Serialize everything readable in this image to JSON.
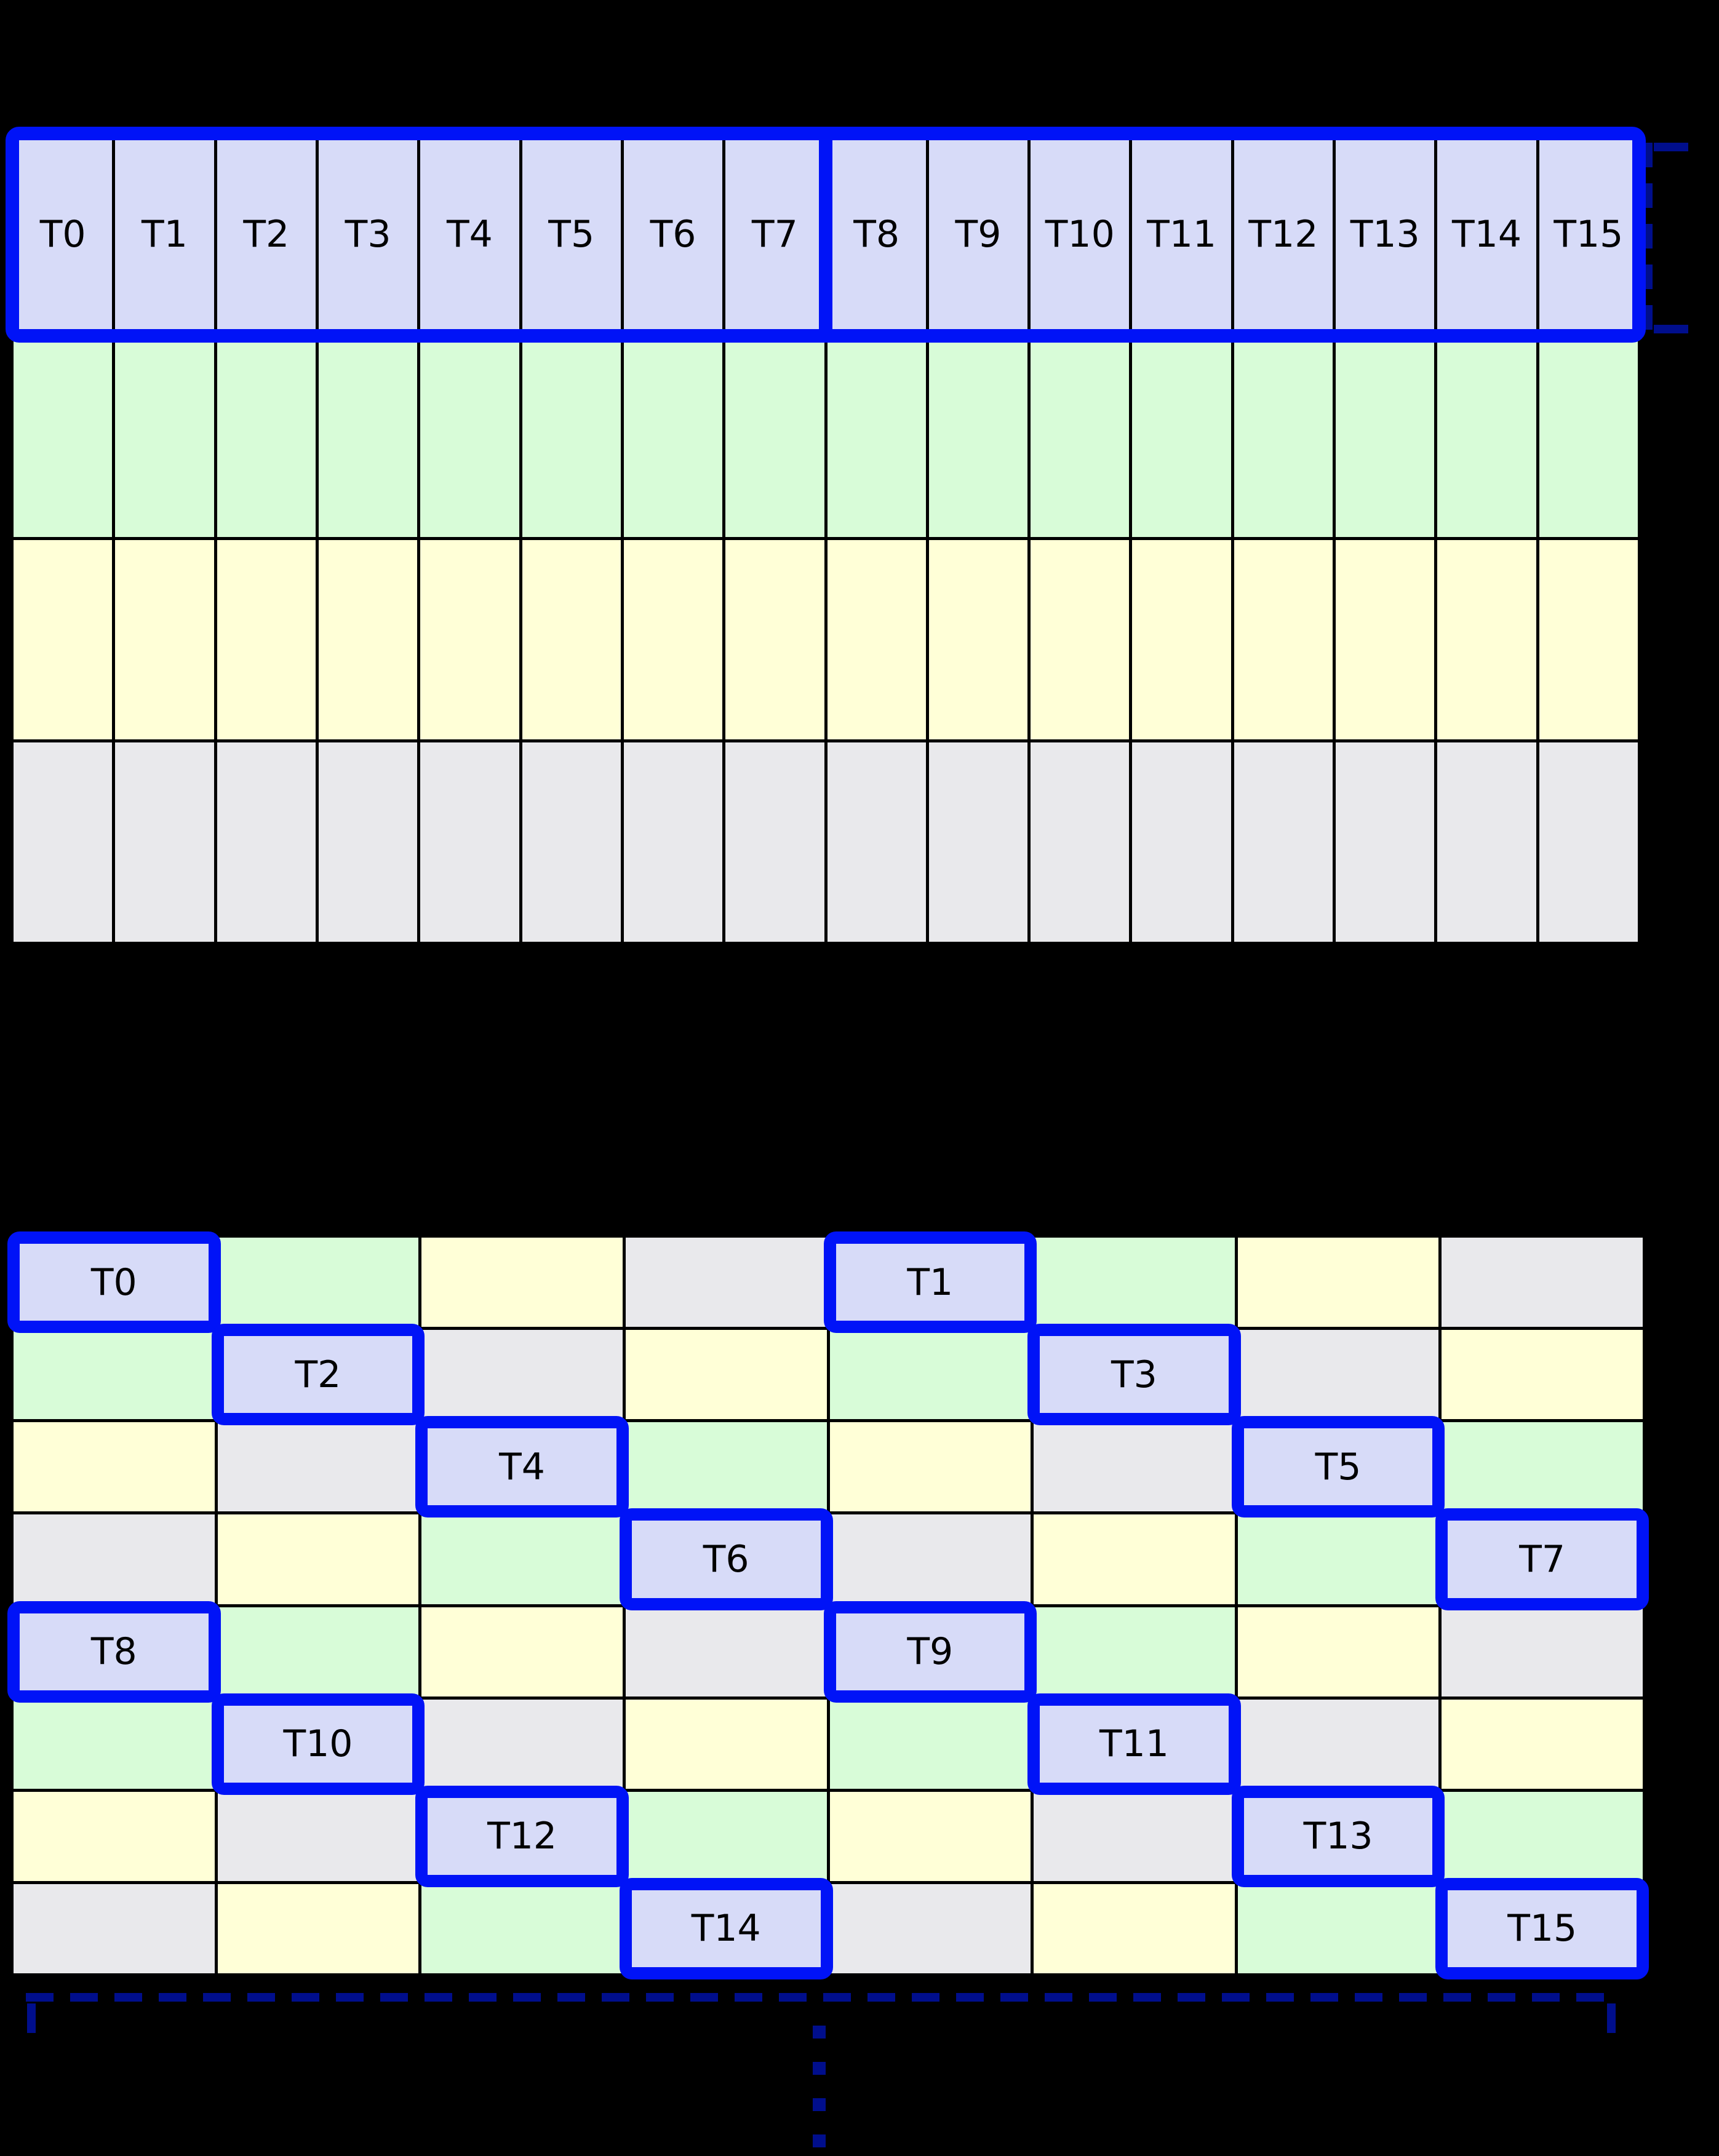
{
  "figure": {
    "background": "#000000"
  },
  "palette": {
    "blue": "#d7dbf8",
    "green": "#d8fcd8",
    "yellow": "#ffffd7",
    "gray": "#e9e9ec"
  },
  "accents": {
    "highlight": "#0013f7",
    "bracket_navy": "#000e8c",
    "grid_line": "#000000",
    "label_text": "#000000"
  },
  "top_grid": {
    "columns": 16,
    "rows": 4,
    "row_colors": [
      "blue",
      "green",
      "yellow",
      "gray"
    ],
    "thread_labels": [
      "T0",
      "T1",
      "T2",
      "T3",
      "T4",
      "T5",
      "T6",
      "T7",
      "T8",
      "T9",
      "T10",
      "T11",
      "T12",
      "T13",
      "T14",
      "T15"
    ],
    "highlighted_row": 0,
    "divider_after_column": 8
  },
  "bottom_grid": {
    "columns": 8,
    "rows": 8,
    "color_matrix": [
      [
        "blue",
        "green",
        "yellow",
        "gray",
        "blue",
        "green",
        "yellow",
        "gray"
      ],
      [
        "green",
        "blue",
        "gray",
        "yellow",
        "green",
        "blue",
        "gray",
        "yellow"
      ],
      [
        "yellow",
        "gray",
        "blue",
        "green",
        "yellow",
        "gray",
        "blue",
        "green"
      ],
      [
        "gray",
        "yellow",
        "green",
        "blue",
        "gray",
        "yellow",
        "green",
        "blue"
      ],
      [
        "blue",
        "green",
        "yellow",
        "gray",
        "blue",
        "green",
        "yellow",
        "gray"
      ],
      [
        "green",
        "blue",
        "gray",
        "yellow",
        "green",
        "blue",
        "gray",
        "yellow"
      ],
      [
        "yellow",
        "gray",
        "blue",
        "green",
        "yellow",
        "gray",
        "blue",
        "green"
      ],
      [
        "gray",
        "yellow",
        "green",
        "blue",
        "gray",
        "yellow",
        "green",
        "blue"
      ]
    ],
    "label_matrix": [
      [
        "T0",
        "",
        "",
        "",
        "T1",
        "",
        "",
        ""
      ],
      [
        "",
        "T2",
        "",
        "",
        "",
        "T3",
        "",
        ""
      ],
      [
        "",
        "",
        "T4",
        "",
        "",
        "",
        "T5",
        ""
      ],
      [
        "",
        "",
        "",
        "T6",
        "",
        "",
        "",
        "T7"
      ],
      [
        "T8",
        "",
        "",
        "",
        "T9",
        "",
        "",
        ""
      ],
      [
        "",
        "T10",
        "",
        "",
        "",
        "T11",
        "",
        ""
      ],
      [
        "",
        "",
        "T12",
        "",
        "",
        "",
        "T13",
        ""
      ],
      [
        "",
        "",
        "",
        "T14",
        "",
        "",
        "",
        "T15"
      ]
    ]
  },
  "annotations": {
    "right_bracket": {
      "style": "dashed"
    },
    "bottom_bracket": {
      "style": "dashed"
    },
    "continuation_dots": {
      "count": 4
    }
  }
}
